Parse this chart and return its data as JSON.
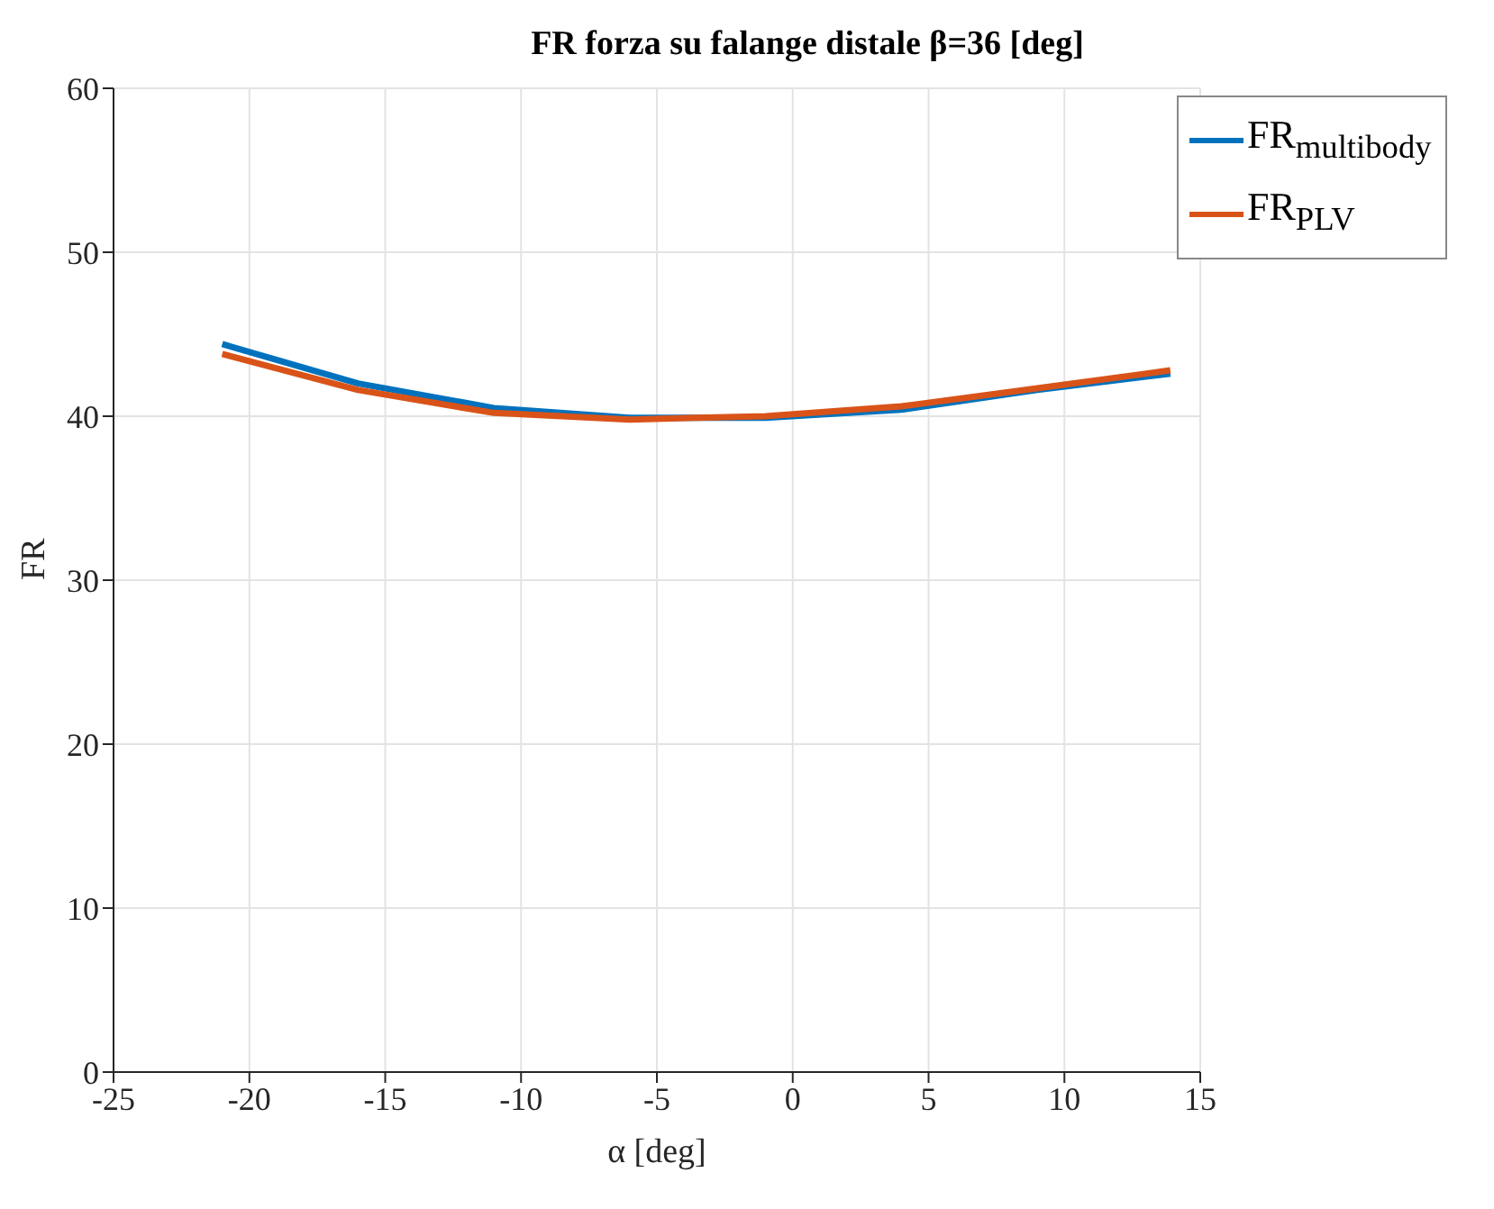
{
  "chart_data": {
    "type": "line",
    "title": "FR forza su falange distale β=36 [deg]",
    "xlabel": "α [deg]",
    "ylabel": "FR",
    "x": [
      -21,
      -16,
      -11,
      -6,
      -1,
      4,
      9,
      13.9
    ],
    "series": [
      {
        "name": "FR$_{multibody}$",
        "color": "#0072bd",
        "values": [
          44.4,
          42.0,
          40.5,
          39.9,
          39.9,
          40.4,
          41.6,
          42.6
        ]
      },
      {
        "name": "FR$_{PLV}$",
        "color": "#d95319",
        "values": [
          43.8,
          41.6,
          40.2,
          39.8,
          40.0,
          40.6,
          41.7,
          42.8
        ]
      }
    ],
    "xlim": [
      -25,
      15
    ],
    "xticks": [
      -25,
      -20,
      -15,
      -10,
      -5,
      0,
      5,
      10,
      15
    ],
    "ylim": [
      0,
      60
    ],
    "yticks": [
      0,
      10,
      20,
      30,
      40,
      50,
      60
    ],
    "grid": true,
    "legend": "top right",
    "marker": "none",
    "line_style": "solid"
  }
}
